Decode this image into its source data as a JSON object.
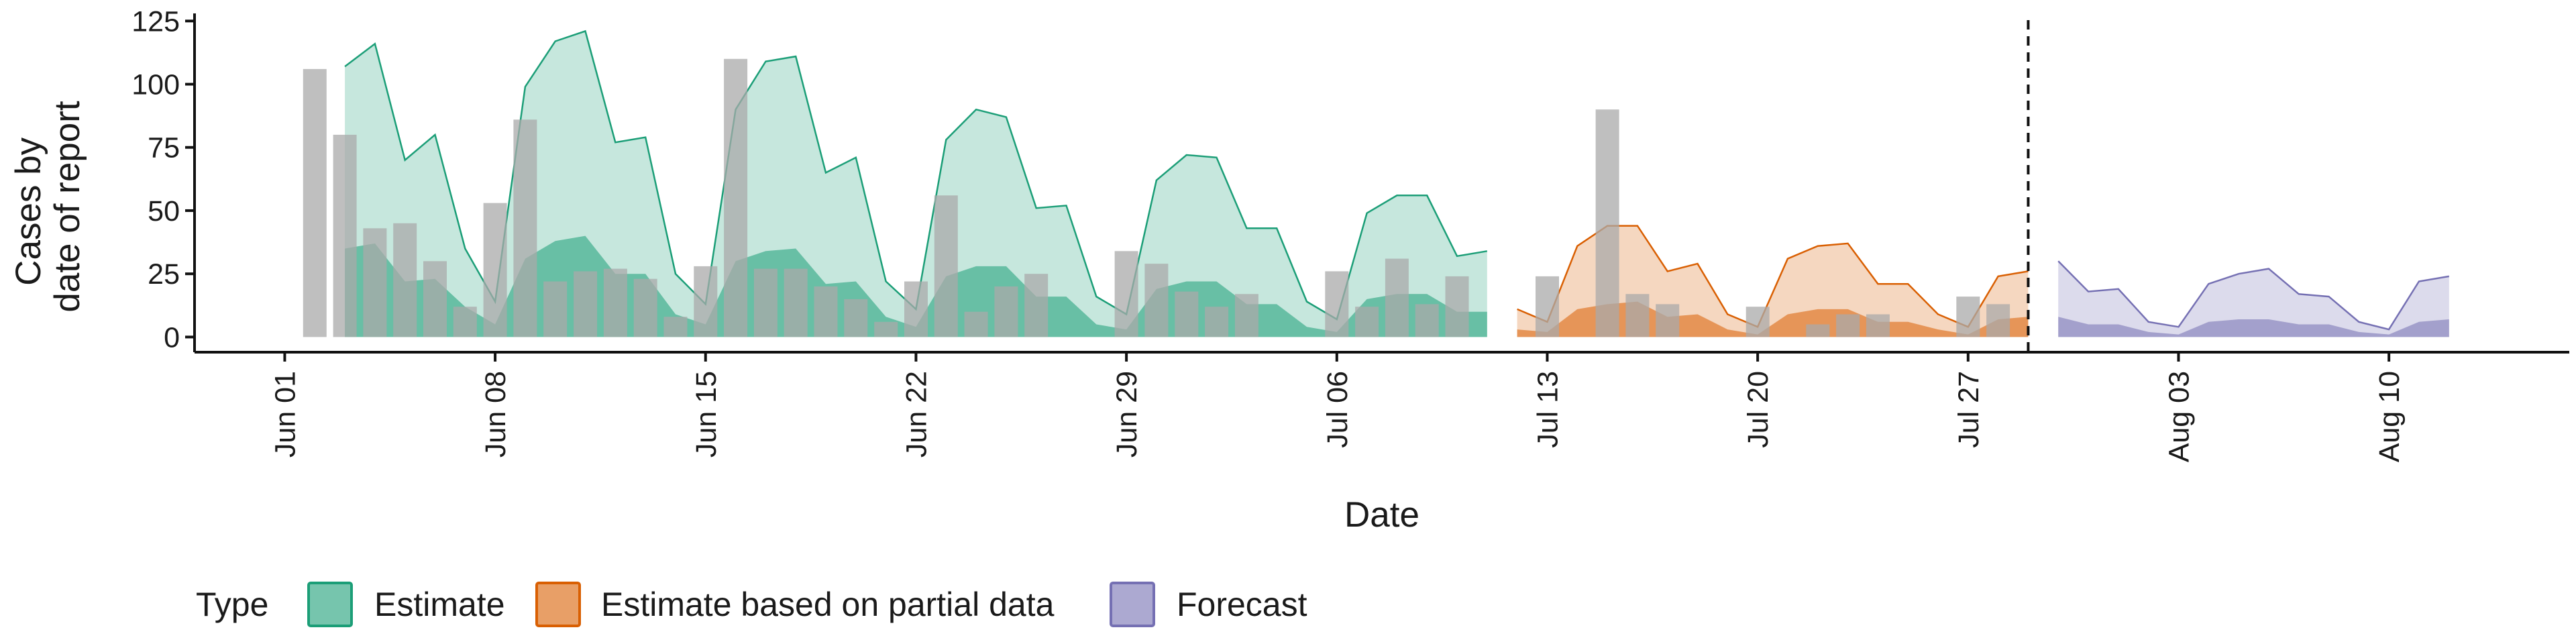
{
  "chart_data": {
    "type": "area",
    "xlabel": "Date",
    "ylabel_lines": [
      "Cases by",
      "date of report"
    ],
    "x_range": [
      "2020-05-29",
      "2020-08-16"
    ],
    "ylim": [
      -6,
      128
    ],
    "y_ticks": [
      0,
      25,
      50,
      75,
      100,
      125
    ],
    "x_ticks": [
      {
        "date": "2020-06-01",
        "label": "Jun 01"
      },
      {
        "date": "2020-06-08",
        "label": "Jun 08"
      },
      {
        "date": "2020-06-15",
        "label": "Jun 15"
      },
      {
        "date": "2020-06-22",
        "label": "Jun 22"
      },
      {
        "date": "2020-06-29",
        "label": "Jun 29"
      },
      {
        "date": "2020-07-06",
        "label": "Jul 06"
      },
      {
        "date": "2020-07-13",
        "label": "Jul 13"
      },
      {
        "date": "2020-07-20",
        "label": "Jul 20"
      },
      {
        "date": "2020-07-27",
        "label": "Jul 27"
      },
      {
        "date": "2020-08-03",
        "label": "Aug 03"
      },
      {
        "date": "2020-08-10",
        "label": "Aug 10"
      }
    ],
    "vline_date": "2020-07-29",
    "grid": false,
    "legend": {
      "title": "Type",
      "position": "bottom",
      "entries": [
        {
          "label": "Estimate",
          "color": "#1b9e77"
        },
        {
          "label": "Estimate based on partial data",
          "color": "#d95f02"
        },
        {
          "label": "Forecast",
          "color": "#7570b3"
        }
      ]
    },
    "bar_color": "#a9a9a9",
    "reported_cases": {
      "start_date": "2020-06-02",
      "values": [
        106,
        80,
        43,
        45,
        30,
        12,
        53,
        86,
        22,
        26,
        27,
        23,
        8,
        28,
        110,
        27,
        27,
        20,
        15,
        6,
        22,
        56,
        10,
        20,
        25,
        0,
        0,
        34,
        29,
        18,
        12,
        17,
        0,
        0,
        26,
        12,
        31,
        13,
        24,
        0,
        0,
        24,
        0,
        90,
        17,
        13,
        0,
        0,
        12,
        0,
        5,
        9,
        9,
        0,
        0,
        16,
        13
      ]
    },
    "series": [
      {
        "name": "Estimate",
        "color": "#1b9e77",
        "start_date": "2020-06-03",
        "upper": [
          107,
          116,
          70,
          80,
          35,
          14,
          99,
          117,
          121,
          77,
          79,
          25,
          13,
          90,
          109,
          111,
          65,
          71,
          22,
          11,
          78,
          90,
          87,
          51,
          52,
          16,
          9,
          62,
          72,
          71,
          43,
          43,
          14,
          7,
          49,
          56,
          56,
          32,
          34
        ],
        "lower": [
          35,
          37,
          22,
          23,
          12,
          5,
          31,
          38,
          40,
          25,
          25,
          9,
          5,
          30,
          34,
          35,
          21,
          22,
          8,
          4,
          24,
          28,
          28,
          16,
          16,
          5,
          3,
          19,
          22,
          22,
          13,
          13,
          4,
          2,
          15,
          17,
          17,
          10,
          10
        ]
      },
      {
        "name": "Estimate based on partial data",
        "color": "#d95f02",
        "start_date": "2020-07-12",
        "upper": [
          11,
          6,
          36,
          44,
          44,
          26,
          29,
          9,
          4,
          31,
          36,
          37,
          21,
          21,
          9,
          4,
          24,
          26
        ],
        "lower": [
          3,
          2,
          11,
          13,
          14,
          8,
          9,
          3,
          1,
          9,
          11,
          11,
          6,
          6,
          3,
          1,
          7,
          8
        ]
      },
      {
        "name": "Forecast",
        "color": "#7570b3",
        "start_date": "2020-07-30",
        "upper": [
          30,
          18,
          19,
          6,
          4,
          21,
          25,
          27,
          17,
          16,
          6,
          3,
          22,
          24
        ],
        "lower": [
          8,
          5,
          5,
          2,
          1,
          6,
          7,
          7,
          5,
          5,
          2,
          1,
          6,
          7
        ]
      }
    ]
  }
}
